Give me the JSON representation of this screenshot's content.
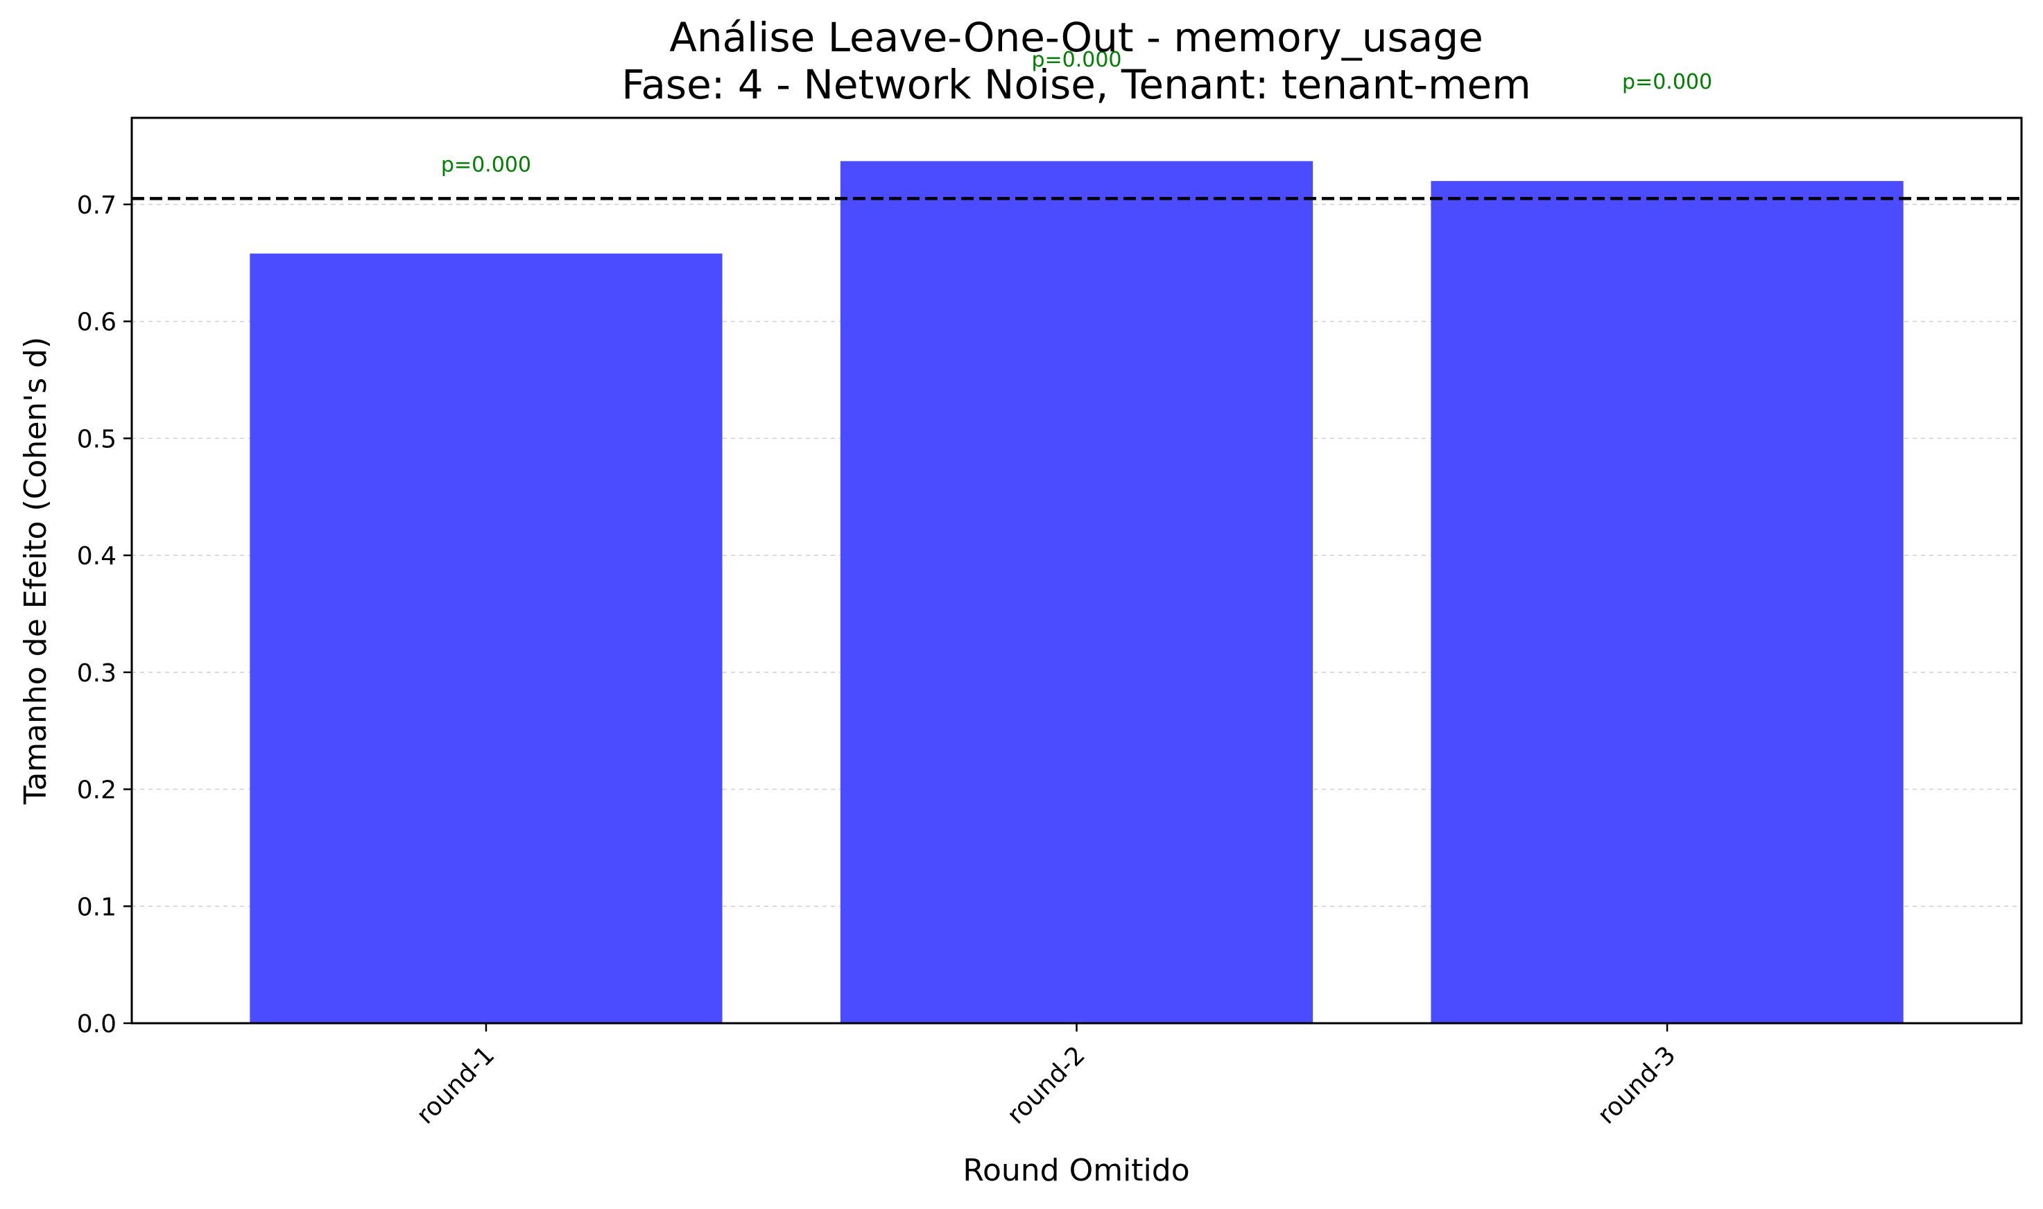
{
  "chart_data": {
    "type": "bar",
    "title": "Análise Leave-One-Out - memory_usage",
    "subtitle": "Fase: 4 - Network Noise, Tenant: tenant-mem",
    "xlabel": "Round Omitido",
    "ylabel": "Tamanho de Efeito (Cohen's d)",
    "categories": [
      "round-1",
      "round-2",
      "round-3"
    ],
    "values": [
      0.658,
      0.737,
      0.72
    ],
    "annotations": [
      "p=0.000",
      "p=0.000",
      "p=0.000"
    ],
    "annotation_values": [
      0.728,
      0.818,
      0.799
    ],
    "yticks": [
      "0.0",
      "0.1",
      "0.2",
      "0.3",
      "0.4",
      "0.5",
      "0.6",
      "0.7"
    ],
    "ylim": [
      0,
      0.774
    ],
    "reference_line": 0.705,
    "grid": "y-dashed",
    "bar_color": "#4b4bff",
    "annotation_color": "#008000",
    "reference_line_color": "#000000"
  }
}
